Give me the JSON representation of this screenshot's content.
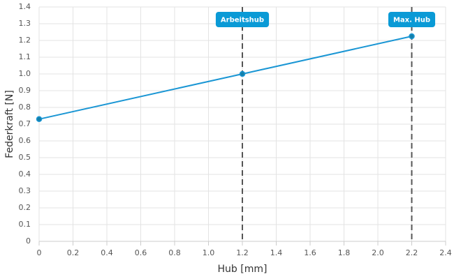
{
  "chart_data": {
    "type": "line",
    "x_label": "Hub [mm]",
    "y_label": "Federkraft [N]",
    "x": [
      0,
      1.2,
      2.2
    ],
    "series": [
      {
        "name": "Federkraft",
        "color": "#1a96d4",
        "values": [
          0.73,
          1.0,
          1.225
        ]
      }
    ],
    "xlim": [
      0,
      2.4
    ],
    "xticks": [
      0,
      0.2,
      0.4,
      0.6,
      0.8,
      {
        "value": 1,
        "label": "1.0"
      },
      1.2,
      1.4,
      1.6,
      1.8,
      {
        "value": 2,
        "label": "2.0"
      },
      2.2,
      2.4
    ],
    "ylim": [
      0,
      1.4
    ],
    "yticks": [
      0,
      0.1,
      0.2,
      0.3,
      0.4,
      0.5,
      0.6,
      0.7,
      0.8,
      0.9,
      {
        "value": 1,
        "label": "1.0"
      },
      1.1,
      1.2,
      1.3,
      1.4
    ],
    "grid": true,
    "annotations": [
      {
        "x": 1.2,
        "label": "Arbeitshub",
        "color": "#0a9ad6"
      },
      {
        "x": 2.2,
        "label": "Max. Hub",
        "color": "#0a9ad6"
      }
    ]
  }
}
